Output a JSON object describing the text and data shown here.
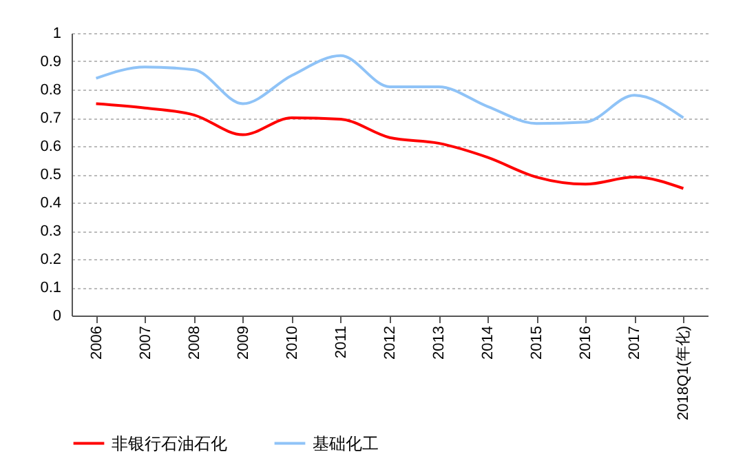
{
  "chart_data": {
    "type": "line",
    "categories": [
      "2006",
      "2007",
      "2008",
      "2009",
      "2010",
      "2011",
      "2012",
      "2013",
      "2014",
      "2015",
      "2016",
      "2017",
      "2018Q1(年化)"
    ],
    "series": [
      {
        "name": "非银行石油石化",
        "color": "#ff0000",
        "values": [
          0.75,
          0.735,
          0.71,
          0.64,
          0.7,
          0.695,
          0.63,
          0.61,
          0.56,
          0.49,
          0.465,
          0.49,
          0.45
        ]
      },
      {
        "name": "基础化工",
        "color": "#8fc3f7",
        "values": [
          0.84,
          0.88,
          0.87,
          0.75,
          0.85,
          0.92,
          0.81,
          0.81,
          0.74,
          0.68,
          0.685,
          0.78,
          0.7
        ]
      }
    ],
    "ylim": [
      0,
      1
    ],
    "yticks": [
      0,
      0.1,
      0.2,
      0.3,
      0.4,
      0.5,
      0.6,
      0.7,
      0.8,
      0.9,
      1
    ],
    "grid": "y",
    "legend": "bottom",
    "marker": "none",
    "line_style": "solid"
  }
}
